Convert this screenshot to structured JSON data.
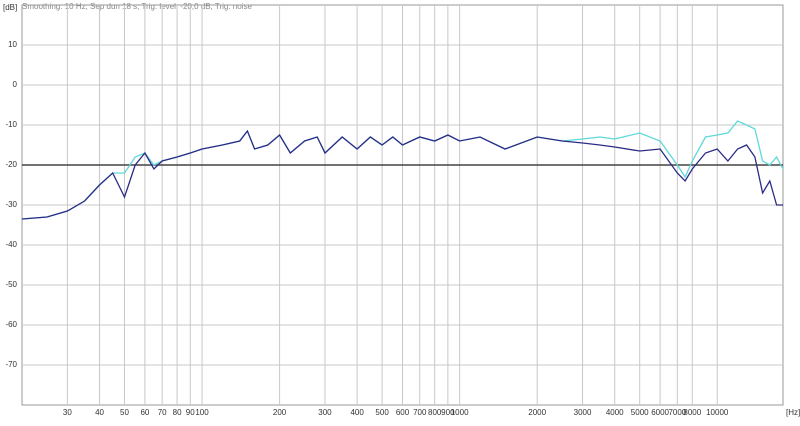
{
  "chart_data": {
    "type": "line",
    "title": "Smoothing: 10 Hz, Sep dun 18 s, Trig. level: -20,0 dB, Trig: noise",
    "x_label": "[Hz]",
    "y_label": "[dB]",
    "x_scale": "log",
    "x": [
      20,
      25,
      30,
      35,
      40,
      45,
      50,
      55,
      60,
      65,
      70,
      80,
      90,
      100,
      120,
      140,
      150,
      160,
      180,
      200,
      220,
      250,
      280,
      300,
      350,
      400,
      450,
      500,
      550,
      600,
      700,
      800,
      900,
      1000,
      1200,
      1500,
      2000,
      2500,
      3000,
      3500,
      4000,
      5000,
      6000,
      7000,
      7500,
      8000,
      9000,
      10000,
      11000,
      12000,
      13000,
      14000,
      15000,
      16000,
      17000,
      18000
    ],
    "series": [
      {
        "color": "#2b2b86",
        "values": [
          -33.5,
          -33,
          -31.5,
          -29,
          -25,
          -22,
          -28,
          -20,
          -17,
          -21,
          -19,
          -18,
          -17,
          -16,
          -15,
          -14,
          -11.5,
          -16,
          -15,
          -12.5,
          -17,
          -14,
          -13,
          -17,
          -13,
          -16,
          -13,
          -15,
          -13,
          -15,
          -13,
          -14,
          -12.5,
          -14,
          -13,
          -16,
          -13,
          -14,
          -14.5,
          -15,
          -15.5,
          -16.5,
          -16,
          -22,
          -24,
          -21,
          -17,
          -16,
          -19,
          -16,
          -15,
          -18,
          -27,
          -24,
          -30,
          -30
        ]
      },
      {
        "color": "#5fd8d8",
        "values": [
          -33.5,
          -33,
          -31.5,
          -29,
          -25,
          -22,
          -22,
          -18,
          -17,
          -20,
          -19,
          -18,
          -17,
          -16,
          -15,
          -14,
          -11.5,
          -16,
          -15,
          -12.5,
          -17,
          -14,
          -13,
          -17,
          -13,
          -16,
          -13,
          -15,
          -13,
          -15,
          -13,
          -14,
          -12.5,
          -14,
          -13,
          -16,
          -13,
          -14,
          -13.5,
          -13,
          -13.5,
          -12,
          -14,
          -20,
          -23,
          -19,
          -13,
          -12.5,
          -12,
          -9,
          -10,
          -11,
          -19,
          -20,
          -18,
          -21
        ]
      }
    ],
    "xlim": [
      20,
      18000
    ],
    "xticks": [
      30,
      40,
      50,
      60,
      70,
      80,
      90,
      100,
      200,
      300,
      400,
      500,
      600,
      700,
      800,
      900,
      1000,
      2000,
      3000,
      4000,
      5000,
      6000,
      7000,
      8000,
      10000
    ],
    "ylim": [
      -80,
      20
    ],
    "yticks": [
      10,
      0,
      -10,
      -20,
      -30,
      -40,
      -50,
      -60,
      -70
    ],
    "ref_line": -20,
    "grid": true
  }
}
